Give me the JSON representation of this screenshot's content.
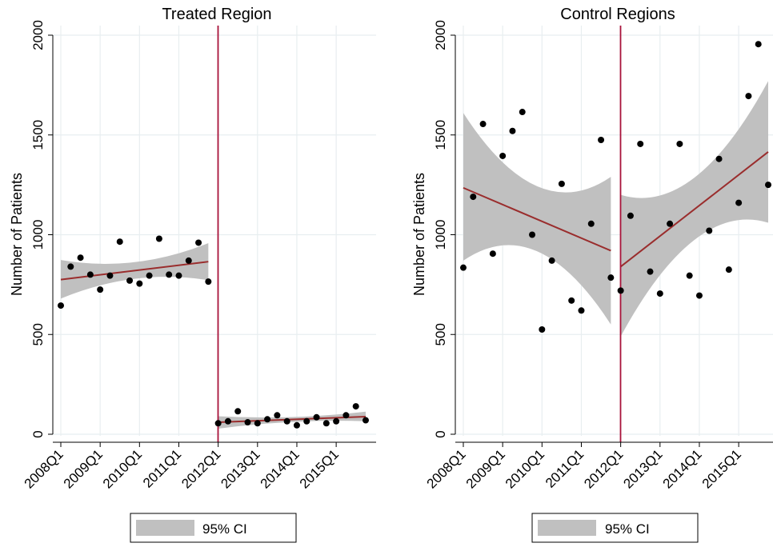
{
  "colors": {
    "ci_band": "#c0c0c0",
    "fit_line": "#9a2d2d",
    "cutoff_line": "#a8123a",
    "points": "#000000",
    "grid": "#e8eef0"
  },
  "chart_data": [
    {
      "type": "scatter",
      "title": "Treated Region",
      "ylabel": "Number of Patients",
      "xlabel": "",
      "x_tick_labels": [
        "2008Q1",
        "2009Q1",
        "2010Q1",
        "2011Q1",
        "2012Q1",
        "2013Q1",
        "2014Q1",
        "2015Q1"
      ],
      "y_ticks": [
        0,
        500,
        1000,
        1500,
        2000
      ],
      "y_tick_labels": [
        "0",
        "500",
        "1000",
        "1500",
        "2000"
      ],
      "ylim": [
        0,
        2000
      ],
      "x_range_quarters": [
        0,
        31
      ],
      "cutoff_quarter": 16,
      "grid": true,
      "legend": {
        "position": "bottom",
        "entries": [
          "95% CI"
        ]
      },
      "points": [
        [
          0,
          645
        ],
        [
          1,
          840
        ],
        [
          2,
          885
        ],
        [
          3,
          800
        ],
        [
          4,
          725
        ],
        [
          5,
          795
        ],
        [
          6,
          965
        ],
        [
          7,
          770
        ],
        [
          8,
          755
        ],
        [
          9,
          795
        ],
        [
          10,
          980
        ],
        [
          11,
          800
        ],
        [
          12,
          795
        ],
        [
          13,
          870
        ],
        [
          14,
          960
        ],
        [
          15,
          765
        ],
        [
          16,
          55
        ],
        [
          17,
          65
        ],
        [
          18,
          115
        ],
        [
          19,
          60
        ],
        [
          20,
          55
        ],
        [
          21,
          75
        ],
        [
          22,
          95
        ],
        [
          23,
          65
        ],
        [
          24,
          45
        ],
        [
          25,
          65
        ],
        [
          26,
          85
        ],
        [
          27,
          55
        ],
        [
          28,
          65
        ],
        [
          29,
          95
        ],
        [
          30,
          140
        ],
        [
          31,
          70
        ]
      ],
      "fit_segments": [
        {
          "x": [
            0,
            15
          ],
          "y": [
            775,
            865
          ],
          "ci_lower": [
            680,
            772
          ],
          "ci_upper": [
            873,
            958
          ]
        },
        {
          "x": [
            16,
            31
          ],
          "y": [
            60,
            88
          ],
          "ci_lower": [
            28,
            65
          ],
          "ci_upper": [
            90,
            113
          ]
        }
      ]
    },
    {
      "type": "scatter",
      "title": "Control Regions",
      "ylabel": "Number of Patients",
      "xlabel": "",
      "x_tick_labels": [
        "2008Q1",
        "2009Q1",
        "2010Q1",
        "2011Q1",
        "2012Q1",
        "2013Q1",
        "2014Q1",
        "2015Q1"
      ],
      "y_ticks": [
        0,
        500,
        1000,
        1500,
        2000
      ],
      "y_tick_labels": [
        "0",
        "500",
        "1000",
        "1500",
        "2000"
      ],
      "ylim": [
        0,
        2000
      ],
      "x_range_quarters": [
        0,
        31
      ],
      "cutoff_quarter": 16,
      "grid": true,
      "legend": {
        "position": "bottom",
        "entries": [
          "95% CI"
        ]
      },
      "points": [
        [
          0,
          835
        ],
        [
          1,
          1190
        ],
        [
          2,
          1555
        ],
        [
          3,
          905
        ],
        [
          4,
          1395
        ],
        [
          5,
          1520
        ],
        [
          6,
          1615
        ],
        [
          7,
          1000
        ],
        [
          8,
          525
        ],
        [
          9,
          870
        ],
        [
          10,
          1255
        ],
        [
          11,
          670
        ],
        [
          12,
          620
        ],
        [
          13,
          1055
        ],
        [
          14,
          1475
        ],
        [
          15,
          785
        ],
        [
          16,
          720
        ],
        [
          17,
          1095
        ],
        [
          18,
          1455
        ],
        [
          19,
          815
        ],
        [
          20,
          705
        ],
        [
          21,
          1055
        ],
        [
          22,
          1455
        ],
        [
          23,
          795
        ],
        [
          24,
          695
        ],
        [
          25,
          1020
        ],
        [
          26,
          1380
        ],
        [
          27,
          825
        ],
        [
          28,
          1160
        ],
        [
          29,
          1695
        ],
        [
          30,
          1955
        ],
        [
          31,
          1250
        ]
      ],
      "fit_segments": [
        {
          "x": [
            0,
            15
          ],
          "y": [
            1235,
            920
          ],
          "ci_lower": [
            870,
            550
          ],
          "ci_upper": [
            1610,
            1290
          ]
        },
        {
          "x": [
            16,
            31
          ],
          "y": [
            840,
            1415
          ],
          "ci_lower": [
            490,
            1060
          ],
          "ci_upper": [
            1200,
            1770
          ]
        }
      ]
    }
  ]
}
